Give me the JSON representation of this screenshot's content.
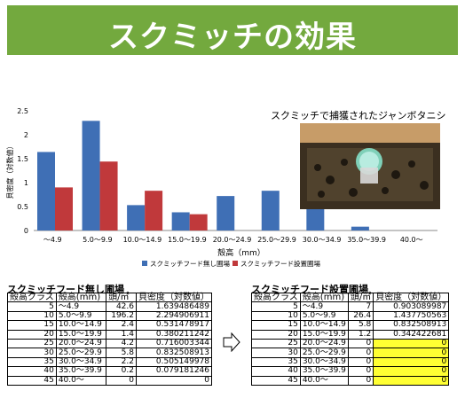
{
  "banner": {
    "title": "スクミッチの効果"
  },
  "photo": {
    "caption": "スクミッチで捕獲されたジャンボタニシ"
  },
  "chart_data": {
    "type": "bar",
    "categories": [
      "〜4.9",
      "5.0〜9.9",
      "10.0〜14.9",
      "15.0〜19.9",
      "20.0〜24.9",
      "25.0〜29.9",
      "30.0〜34.9",
      "35.0〜39.9",
      "40.0〜"
    ],
    "series": [
      {
        "name": "スクミッチフード無し圃場",
        "color": "#3f6fb5",
        "values": [
          1.64,
          2.29,
          0.53,
          0.38,
          0.72,
          0.83,
          0.51,
          0.08,
          0
        ]
      },
      {
        "name": "スクミッチフード設置圃場",
        "color": "#c0393b",
        "values": [
          0.9,
          1.44,
          0.83,
          0.34,
          0,
          0,
          0,
          0,
          0
        ]
      }
    ],
    "ylabel": "貝密度（対数値）",
    "xlabel": "殻高（mm）",
    "yticks": [
      "0",
      "0.5",
      "1",
      "1.5",
      "2",
      "2.5"
    ],
    "ylim": [
      0,
      2.5
    ],
    "grid": false,
    "legend": "bottom"
  },
  "tables": {
    "left": {
      "title": "スクミッチフード無し圃場",
      "headers": [
        "殻高クラス",
        "殻高(mm)",
        "頭/㎡",
        "貝密度（対数値）"
      ],
      "rows": [
        [
          "5",
          "〜4.9",
          "42.6",
          "1.639486489"
        ],
        [
          "10",
          "5.0〜9.9",
          "196.2",
          "2.294906911"
        ],
        [
          "15",
          "10.0〜14.9",
          "2.4",
          "0.531478917"
        ],
        [
          "20",
          "15.0〜19.9",
          "1.4",
          "0.380211242"
        ],
        [
          "25",
          "20.0〜24.9",
          "4.2",
          "0.716003344"
        ],
        [
          "30",
          "25.0〜29.9",
          "5.8",
          "0.832508913"
        ],
        [
          "35",
          "30.0〜34.9",
          "2.2",
          "0.505149978"
        ],
        [
          "40",
          "35.0〜39.9",
          "0.2",
          "0.079181246"
        ],
        [
          "45",
          "40.0〜",
          "0",
          "0"
        ]
      ]
    },
    "right": {
      "title": "スクミッチフード設置圃場",
      "headers": [
        "殻高クラス",
        "殻高(mm)",
        "頭/㎡",
        "貝密度（対数値）"
      ],
      "rows": [
        [
          "5",
          "〜4.9",
          "7",
          "0.903089987"
        ],
        [
          "10",
          "5.0〜9.9",
          "26.4",
          "1.437750563"
        ],
        [
          "15",
          "10.0〜14.9",
          "5.8",
          "0.832508913"
        ],
        [
          "20",
          "15.0〜19.9",
          "1.2",
          "0.342422681"
        ],
        [
          "25",
          "20.0〜24.9",
          "0",
          "0"
        ],
        [
          "30",
          "25.0〜29.9",
          "0",
          "0"
        ],
        [
          "35",
          "30.0〜34.9",
          "0",
          "0"
        ],
        [
          "40",
          "35.0〜39.9",
          "0",
          "0"
        ],
        [
          "45",
          "40.0〜",
          "0",
          "0"
        ]
      ],
      "highlight_color": "#ffff33"
    }
  }
}
